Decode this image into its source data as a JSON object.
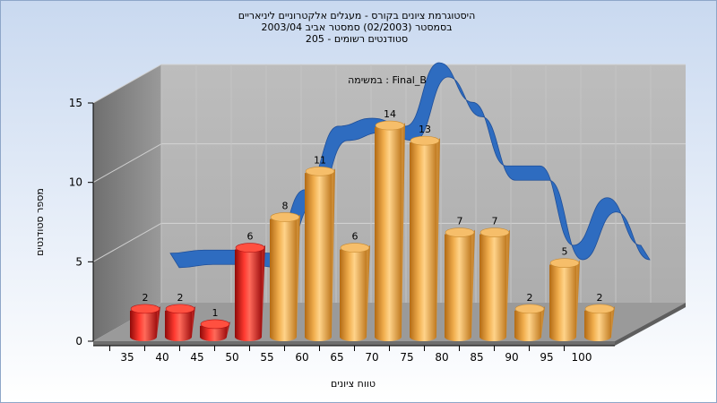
{
  "chart_data": {
    "type": "bar",
    "title_lines": [
      "היסטוגרמת ציונים בקורס - מעגלים אלקטרוניים ליניאריים",
      "בסמסטר  (02/2003)  סמסטר אביב 2003/04",
      "סטודנטים רשומים - 205"
    ],
    "annotation": "במשימה : Final_B",
    "xlabel": "טווח ציונים",
    "ylabel": "מספר סטודנטים",
    "categories": [
      "35",
      "40",
      "45",
      "50",
      "55",
      "60",
      "65",
      "70",
      "75",
      "80",
      "85",
      "90",
      "95",
      "100"
    ],
    "values": [
      2,
      2,
      1,
      6,
      8,
      11,
      6,
      14,
      13,
      7,
      7,
      2,
      5,
      2
    ],
    "y_ticks": [
      "0",
      "5",
      "10",
      "15"
    ],
    "ylim": [
      0,
      15
    ],
    "grid": true,
    "data_labels": true,
    "colors": {
      "failing_bar": "#e0201c",
      "passing_bar": "#f0a840",
      "curve": "#2e6cc0",
      "background_top": "#c9d9f0",
      "background_bottom": "#ffffff",
      "plot_back": "#b6b6b6",
      "plot_side": "#8a8a8a",
      "plot_floor": "#9a9a9a"
    },
    "failing_categories": [
      "35",
      "40",
      "45",
      "50"
    ],
    "trend_curve_note": "smooth ribbon through the bar tops",
    "trend_values": [
      3.0,
      3.2,
      3.2,
      3.0,
      7.0,
      11.0,
      11.5,
      11.0,
      15.0,
      12.5,
      8.5,
      8.5,
      3.5,
      6.5,
      3.5
    ]
  }
}
